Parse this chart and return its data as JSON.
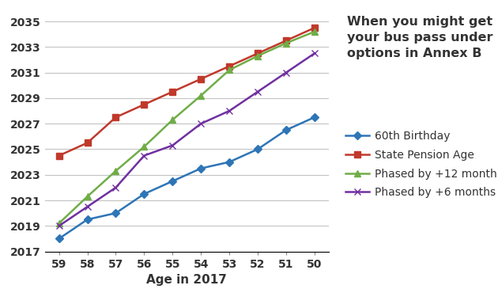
{
  "ages": [
    59,
    58,
    57,
    56,
    55,
    54,
    53,
    52,
    51,
    50
  ],
  "series_order": [
    "60th Birthday",
    "State Pension Age",
    "Phased by +12 month",
    "Phased by +6 months"
  ],
  "series": {
    "60th Birthday": {
      "values": [
        2018.0,
        2019.5,
        2020.0,
        2021.5,
        2022.5,
        2023.5,
        2024.0,
        2025.0,
        2026.5,
        2027.5
      ],
      "color": "#2E75B6",
      "marker": "D",
      "markersize": 5,
      "linewidth": 1.8
    },
    "State Pension Age": {
      "values": [
        2024.5,
        2025.5,
        2027.5,
        2028.5,
        2029.5,
        2030.5,
        2031.5,
        2032.5,
        2033.5,
        2034.5
      ],
      "color": "#C0392B",
      "marker": "s",
      "markersize": 6,
      "linewidth": 1.8
    },
    "Phased by +12 month": {
      "values": [
        2019.2,
        2021.3,
        2023.3,
        2025.2,
        2027.3,
        2029.2,
        2031.2,
        2032.3,
        2033.3,
        2034.2
      ],
      "color": "#70AD47",
      "marker": "^",
      "markersize": 6,
      "linewidth": 1.8
    },
    "Phased by +6 months": {
      "values": [
        2019.0,
        2020.5,
        2022.0,
        2024.5,
        2025.3,
        2027.0,
        2028.0,
        2029.5,
        2031.0,
        2032.5
      ],
      "color": "#7030A0",
      "marker": "x",
      "markersize": 6,
      "linewidth": 1.8
    }
  },
  "ylim": [
    2017,
    2036
  ],
  "yticks": [
    2017,
    2019,
    2021,
    2023,
    2025,
    2027,
    2029,
    2031,
    2033,
    2035
  ],
  "xlabel": "Age in 2017",
  "title": "When you might get\nyour bus pass under\noptions in Annex B",
  "title_fontsize": 11.5,
  "axis_label_fontsize": 11,
  "tick_fontsize": 10,
  "legend_fontsize": 10,
  "grid_color": "#AAAAAA",
  "grid_alpha": 0.7
}
